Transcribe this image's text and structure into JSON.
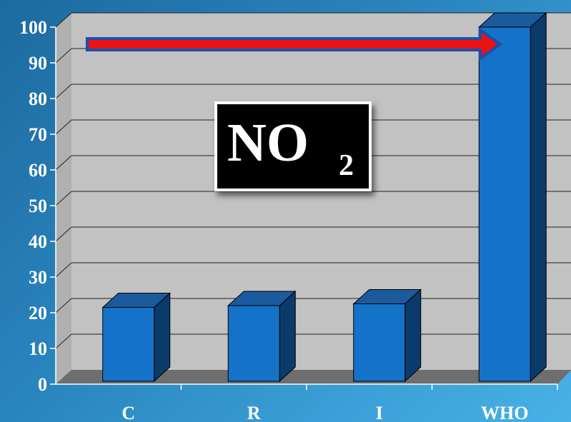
{
  "chart_data": {
    "type": "bar",
    "categories": [
      "C",
      "R",
      "I",
      "WHO"
    ],
    "values": [
      21.5,
      22,
      22.5,
      100
    ],
    "ylim": [
      0,
      100
    ],
    "yticks": [
      0,
      10,
      20,
      30,
      40,
      50,
      60,
      70,
      80,
      90,
      100
    ],
    "annotation": {
      "main": "NO",
      "subscript": "2"
    },
    "grid": true,
    "bar_3d": true,
    "arrow": {
      "direction": "right",
      "toward": "WHO",
      "color": "#ee1111"
    }
  },
  "colors": {
    "bar_front": "#1572c9",
    "bar_side": "#0b3b6a",
    "bar_top": "#1b5a9c",
    "plot_back": "#c2c2c2",
    "plot_wall": "#b0b0b0",
    "plot_floor": "#6e6e6e",
    "arrow_fill": "#ee1111",
    "arrow_outline": "#1a4fb0"
  }
}
